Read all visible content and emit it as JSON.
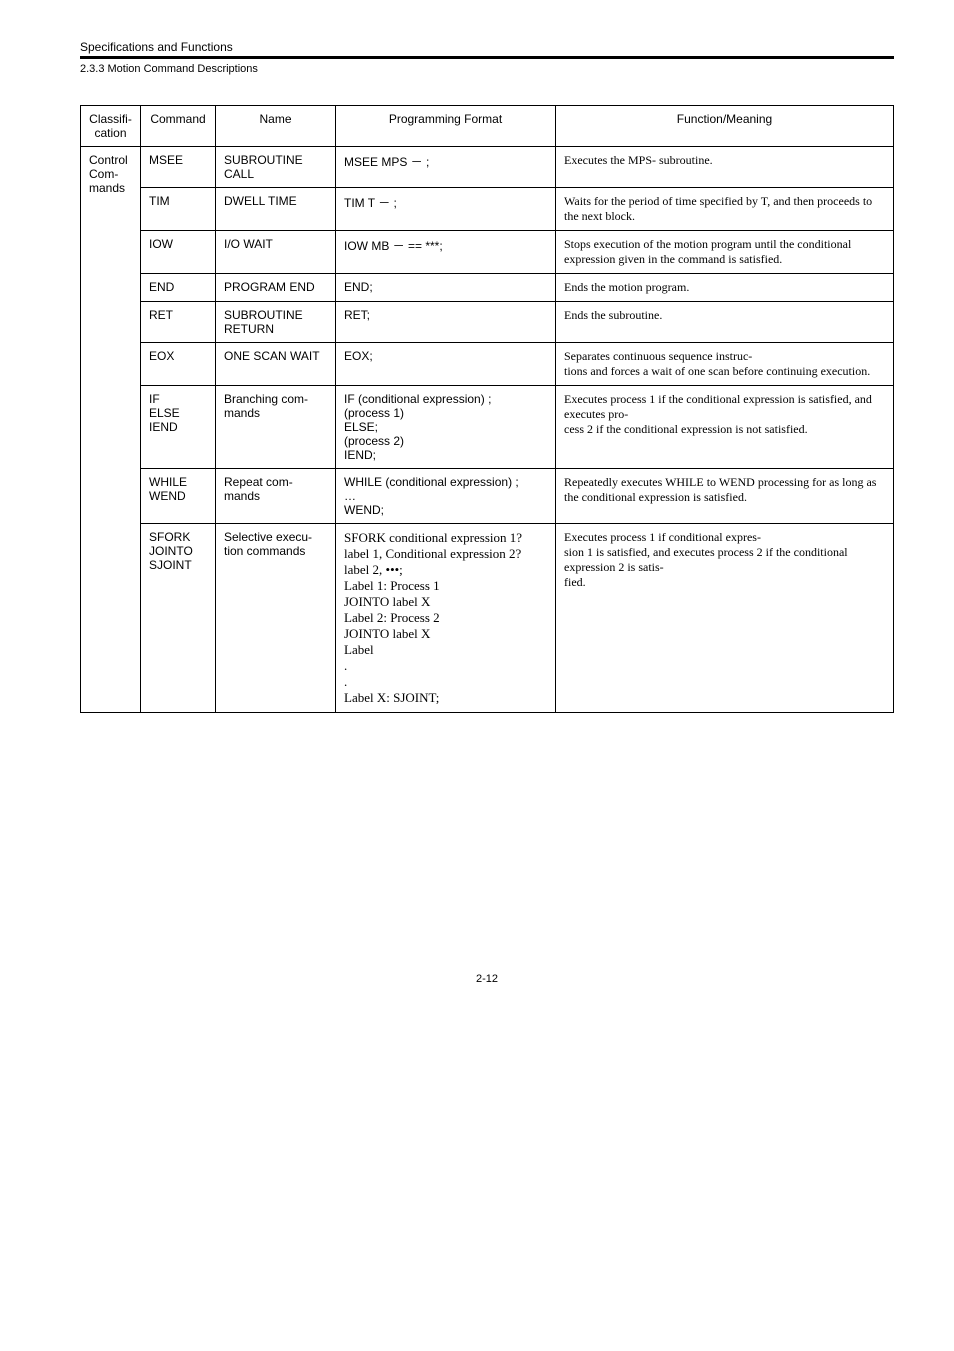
{
  "header": {
    "line1": "Specifications and Functions",
    "line2": "2.3.3  Motion Command Descriptions"
  },
  "table": {
    "columns": {
      "classification": "Classifi-\ncation",
      "command": "Command",
      "name": "Name",
      "programming": "Programming Format",
      "function": "Function/Meaning"
    },
    "classification_group": "Control Com-\nmands",
    "rows": [
      {
        "command": "MSEE",
        "name": "SUBROUTINE CALL",
        "programming": "MSEE MPS － ;",
        "function": "Executes the MPS- subroutine."
      },
      {
        "command": "TIM",
        "name": "DWELL TIME",
        "programming": "TIM T － ;",
        "function": "Waits for the period of time specified by T, and then proceeds to the next block."
      },
      {
        "command": "IOW",
        "name": "I/O WAIT",
        "programming": "IOW MB － == ***;",
        "function": "Stops execution of the motion program until the conditional expression given in the command is satisfied."
      },
      {
        "command": "END",
        "name": "PROGRAM END",
        "programming": "END;",
        "function": "Ends the motion program."
      },
      {
        "command": "RET",
        "name": "SUBROUTINE RETURN",
        "programming": "RET;",
        "function": "Ends the subroutine."
      },
      {
        "command": "EOX",
        "name": "ONE SCAN WAIT",
        "programming": "EOX;",
        "function": "Separates continuous sequence instruc-\ntions and forces a wait of one scan before continuing execution."
      },
      {
        "command": "IF\nELSE\nIEND",
        "name": "Branching com-\nmands",
        "programming": "IF (conditional expression) ;\n(process 1)\nELSE;\n(process 2)\nIEND;",
        "function": "Executes process 1 if the conditional expression is satisfied, and executes pro-\ncess 2 if the conditional expression is not satisfied."
      },
      {
        "command": "WHILE\nWEND",
        "name": "Repeat com-\nmands",
        "programming": "WHILE (conditional expression) ;\n…\nWEND;",
        "function": "Repeatedly executes WHILE to WEND processing for as long as the conditional expression is satisfied."
      },
      {
        "command": "SFORK\nJOINTO\nSJOINT",
        "name": "Selective execu-\ntion commands",
        "programming_mixed": [
          {
            "cls": "serif",
            "txt": "SFORK conditional expression 1?"
          },
          {
            "cls": "serif",
            "txt": "label 1, Conditional expression 2?"
          },
          {
            "cls": "serif",
            "txt": "label 2, •••;"
          },
          {
            "cls": "serif",
            "txt": "Label 1: Process 1"
          },
          {
            "cls": "serif",
            "txt": "JOINTO label X"
          },
          {
            "cls": "serif",
            "txt": "Label 2: Process 2"
          },
          {
            "cls": "serif",
            "txt": "JOINTO label X"
          },
          {
            "cls": "serif",
            "txt": "Label"
          },
          {
            "cls": "serif",
            "txt": "."
          },
          {
            "cls": "serif",
            "txt": "."
          },
          {
            "cls": "serif",
            "txt": "Label X: SJOINT;"
          }
        ],
        "function": "Executes process 1 if conditional expres-\nsion 1 is satisfied, and executes process 2 if the conditional expression 2 is satis-\nfied."
      }
    ]
  },
  "page_number": "2-12"
}
